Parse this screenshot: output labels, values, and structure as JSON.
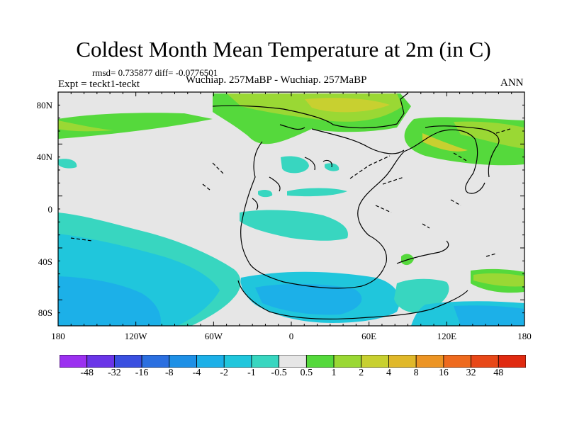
{
  "title": "Coldest Month Mean Temperature at 2m (in C)",
  "stats": "rmsd= 0.735877 diff= -0.0776501",
  "expt": "Expt = teckt1-teckt",
  "subtitle": "Wuchiap. 257MaBP - Wuchiap. 257MaBP",
  "season": "ANN",
  "map": {
    "projection": "cylindrical equidistant",
    "lat_range": [
      -90,
      90
    ],
    "lon_range": [
      -180,
      180
    ],
    "lat_labels": [
      "80N",
      "40N",
      "0",
      "40S",
      "80S"
    ],
    "lon_labels": [
      "180",
      "120W",
      "60W",
      "0",
      "60E",
      "120E",
      "180"
    ],
    "background_fill": "#e6e6e6",
    "coastline_color": "#000000"
  },
  "colorbar": {
    "labels": [
      "-48",
      "-32",
      "-16",
      "-8",
      "-4",
      "-2",
      "-1",
      "-0.5",
      "0.5",
      "1",
      "2",
      "4",
      "8",
      "16",
      "32",
      "48"
    ],
    "colors": [
      "#9b30f0",
      "#6a35e8",
      "#3a4fe0",
      "#2b6fe0",
      "#1e90e6",
      "#1cb0e8",
      "#20c6dc",
      "#38d6c0",
      "#e6e6e6",
      "#55d93c",
      "#9ad834",
      "#c8d030",
      "#e0b82a",
      "#ec9424",
      "#ee6a1e",
      "#e84818",
      "#e02a10"
    ]
  }
}
